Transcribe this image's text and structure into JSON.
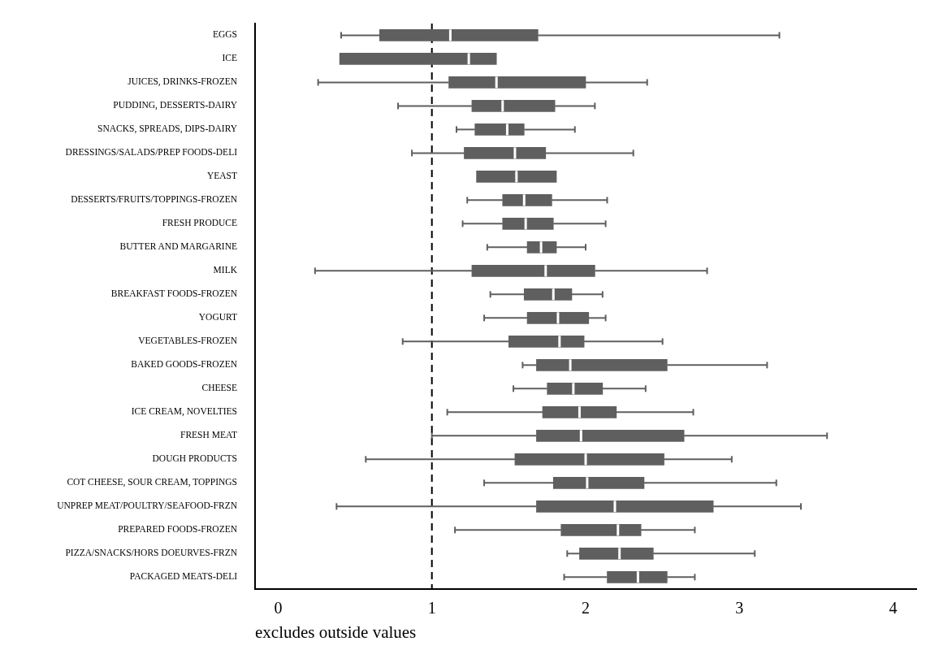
{
  "chart_data": {
    "type": "box",
    "orientation": "horizontal",
    "xlabel": "excludes outside values",
    "categories": [
      "EGGS",
      "ICE",
      "JUICES, DRINKS-FROZEN",
      "PUDDING, DESSERTS-DAIRY",
      "SNACKS, SPREADS, DIPS-DAIRY",
      "DRESSINGS/SALADS/PREP FOODS-DELI",
      "YEAST",
      "DESSERTS/FRUITS/TOPPINGS-FROZEN",
      "FRESH PRODUCE",
      "BUTTER AND MARGARINE",
      "MILK",
      "BREAKFAST FOODS-FROZEN",
      "YOGURT",
      "VEGETABLES-FROZEN",
      "BAKED GOODS-FROZEN",
      "CHEESE",
      "ICE CREAM, NOVELTIES",
      "FRESH MEAT",
      "DOUGH PRODUCTS",
      "COT CHEESE, SOUR CREAM, TOPPINGS",
      "UNPREP MEAT/POULTRY/SEAFOOD-FRZN",
      "PREPARED FOODS-FROZEN",
      "PIZZA/SNACKS/HORS DOEURVES-FRZN",
      "PACKAGED MEATS-DELI"
    ],
    "series": [
      {
        "color": "#5f5f5f",
        "boxes": [
          {
            "low": 0.41,
            "q1": 0.66,
            "median": 1.12,
            "q3": 1.69,
            "high": 3.26
          },
          {
            "low": 0.4,
            "q1": 0.4,
            "median": 1.24,
            "q3": 1.42,
            "high": 1.42
          },
          {
            "low": 0.26,
            "q1": 1.11,
            "median": 1.42,
            "q3": 2.0,
            "high": 2.4
          },
          {
            "low": 0.78,
            "q1": 1.26,
            "median": 1.46,
            "q3": 1.8,
            "high": 2.06
          },
          {
            "low": 1.16,
            "q1": 1.28,
            "median": 1.49,
            "q3": 1.6,
            "high": 1.93
          },
          {
            "low": 0.87,
            "q1": 1.21,
            "median": 1.54,
            "q3": 1.74,
            "high": 2.31
          },
          {
            "low": 1.29,
            "q1": 1.29,
            "median": 1.55,
            "q3": 1.81,
            "high": 1.81
          },
          {
            "low": 1.23,
            "q1": 1.46,
            "median": 1.6,
            "q3": 1.78,
            "high": 2.14
          },
          {
            "low": 1.2,
            "q1": 1.46,
            "median": 1.61,
            "q3": 1.79,
            "high": 2.13
          },
          {
            "low": 1.36,
            "q1": 1.62,
            "median": 1.71,
            "q3": 1.81,
            "high": 2.0
          },
          {
            "low": 0.24,
            "q1": 1.26,
            "median": 1.74,
            "q3": 2.06,
            "high": 2.79
          },
          {
            "low": 1.38,
            "q1": 1.6,
            "median": 1.79,
            "q3": 1.91,
            "high": 2.11
          },
          {
            "low": 1.34,
            "q1": 1.62,
            "median": 1.82,
            "q3": 2.02,
            "high": 2.13
          },
          {
            "low": 0.81,
            "q1": 1.5,
            "median": 1.83,
            "q3": 1.99,
            "high": 2.5
          },
          {
            "low": 1.59,
            "q1": 1.68,
            "median": 1.9,
            "q3": 2.53,
            "high": 3.18
          },
          {
            "low": 1.53,
            "q1": 1.75,
            "median": 1.92,
            "q3": 2.11,
            "high": 2.39
          },
          {
            "low": 1.1,
            "q1": 1.72,
            "median": 1.96,
            "q3": 2.2,
            "high": 2.7
          },
          {
            "low": 1.0,
            "q1": 1.68,
            "median": 1.97,
            "q3": 2.64,
            "high": 3.57
          },
          {
            "low": 0.57,
            "q1": 1.54,
            "median": 2.0,
            "q3": 2.51,
            "high": 2.95
          },
          {
            "low": 1.34,
            "q1": 1.79,
            "median": 2.01,
            "q3": 2.38,
            "high": 3.24
          },
          {
            "low": 0.38,
            "q1": 1.68,
            "median": 2.19,
            "q3": 2.83,
            "high": 3.4
          },
          {
            "low": 1.15,
            "q1": 1.84,
            "median": 2.21,
            "q3": 2.36,
            "high": 2.71
          },
          {
            "low": 1.88,
            "q1": 1.96,
            "median": 2.22,
            "q3": 2.44,
            "high": 3.1
          },
          {
            "low": 1.86,
            "q1": 2.14,
            "median": 2.34,
            "q3": 2.53,
            "high": 2.71
          }
        ]
      }
    ],
    "xlim": [
      -0.15,
      4.15
    ],
    "xticks": [
      0,
      1,
      2,
      3,
      4
    ],
    "ref_lines": [
      {
        "axis": "x",
        "value": 1,
        "color": "#000000",
        "line_style": "dashed"
      }
    ]
  }
}
